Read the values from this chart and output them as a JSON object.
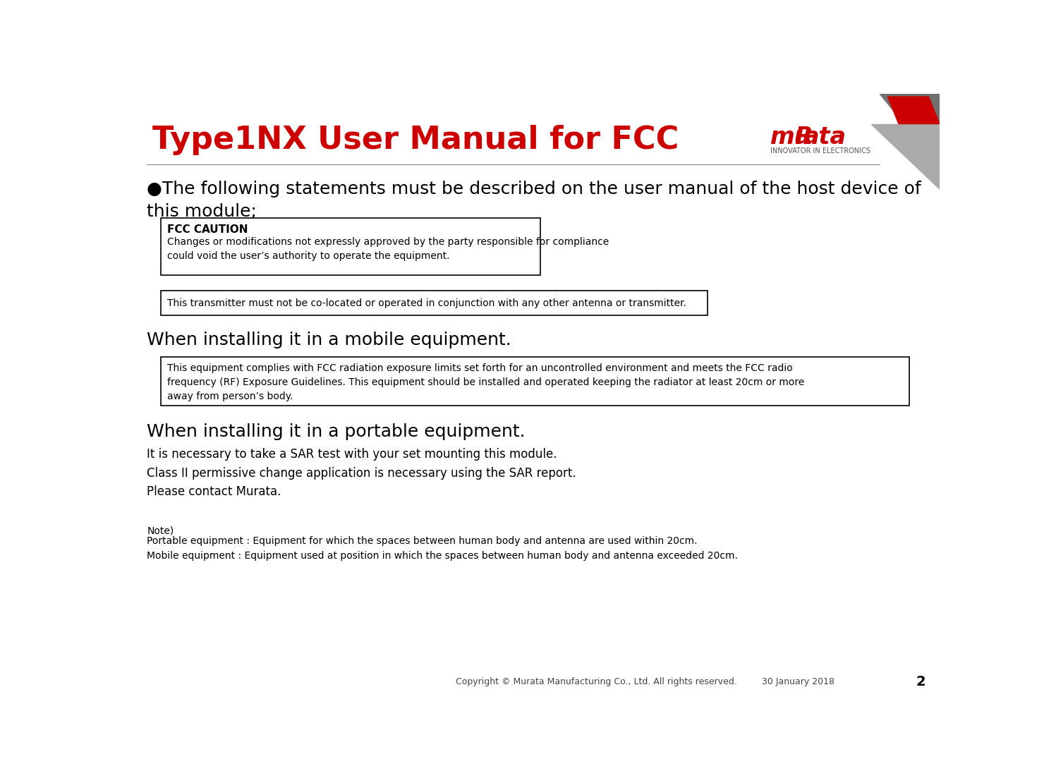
{
  "title": "Type1NX User Manual for FCC",
  "title_color": "#CC0000",
  "title_fontsize": 32,
  "bg_color": "#FFFFFF",
  "header_line_color": "#888888",
  "bullet_text": "●The following statements must be described on the user manual of the host device of\nthis module;",
  "box1_title": "FCC CAUTION",
  "box1_body": "Changes or modifications not expressly approved by the party responsible for compliance\ncould void the user’s authority to operate the equipment.",
  "box2_body": "This transmitter must not be co-located or operated in conjunction with any other antenna or transmitter.",
  "section1_title": "When installing it in a mobile equipment.",
  "box3_body": "This equipment complies with FCC radiation exposure limits set forth for an uncontrolled environment and meets the FCC radio\nfrequency (RF) Exposure Guidelines. This equipment should be installed and operated keeping the radiator at least 20cm or more\naway from person’s body.",
  "section2_title": "When installing it in a portable equipment.",
  "portable_text": "It is necessary to take a SAR test with your set mounting this module.\nClass II permissive change application is necessary using the SAR report.\nPlease contact Murata.",
  "note_title": "Note)",
  "note_text": "Portable equipment : Equipment for which the spaces between human body and antenna are used within 20cm.\nMobile equipment : Equipment used at position in which the spaces between human body and antenna exceeded 20cm.",
  "footer_text": "Copyright © Murata Manufacturing Co., Ltd. All rights reserved.",
  "footer_date": "30 January 2018",
  "footer_page": "2",
  "footer_color": "#444444",
  "box_edge_color": "#000000",
  "text_color": "#000000",
  "small_fontsize": 10,
  "body_fontsize": 12,
  "section_fontsize": 18,
  "bullet_fontsize": 18
}
